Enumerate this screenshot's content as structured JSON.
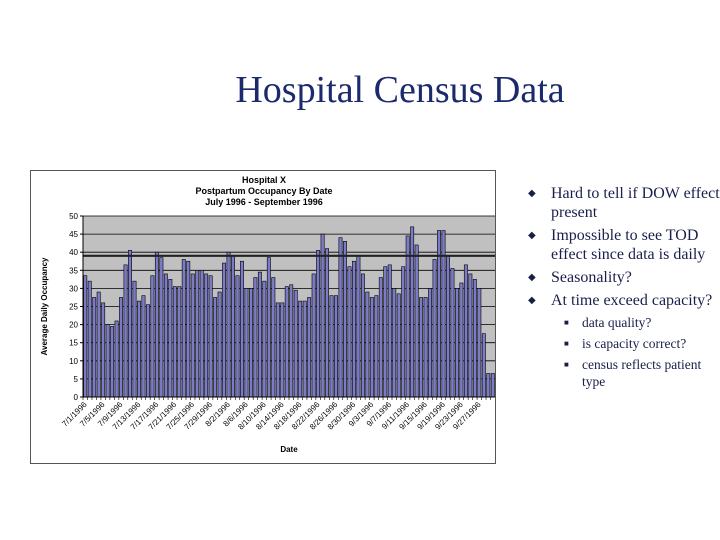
{
  "slide": {
    "title": "Hospital Census Data",
    "bullets": [
      {
        "text": "Hard to tell if DOW effect present"
      },
      {
        "text": "Impossible to see TOD effect since data is daily"
      },
      {
        "text": "Seasonality?"
      },
      {
        "text": "At time exceed capacity?",
        "sub": [
          "data quality?",
          "is capacity correct?",
          "census reflects patient type"
        ]
      }
    ],
    "icons": {
      "bullet": "diamond-bullet-icon",
      "sub_bullet": "square-bullet-icon"
    },
    "colors": {
      "title": "#1a2a6c",
      "text": "#1a1f4a"
    }
  },
  "chart_data": {
    "type": "bar",
    "title": [
      "Hospital X",
      "Postpartum Occupancy By Date",
      "July 1996 - September 1996"
    ],
    "xlabel": "Date",
    "ylabel": "Average Daily Occupancy",
    "ylim": [
      0,
      50
    ],
    "yticks": [
      0,
      5,
      10,
      15,
      20,
      25,
      30,
      35,
      40,
      45,
      50
    ],
    "grid": true,
    "legend": "none",
    "bar_color": "#7b7bc8",
    "plot_background": "#c0c0c0",
    "reference_line": {
      "value": 39,
      "meaning": "capacity"
    },
    "tick_labels": [
      "7/1/1996",
      "7/5/1996",
      "7/9/1996",
      "7/13/1996",
      "7/17/1996",
      "7/21/1996",
      "7/25/1996",
      "7/29/1996",
      "8/2/1996",
      "8/6/1996",
      "8/10/1996",
      "8/14/1996",
      "8/18/1996",
      "8/22/1996",
      "8/26/1996",
      "8/30/1996",
      "9/3/1996",
      "9/7/1996",
      "9/11/1996",
      "9/15/1996",
      "9/19/1996",
      "9/23/1996",
      "9/27/1996"
    ],
    "categories": [
      "7/1",
      "7/2",
      "7/3",
      "7/4",
      "7/5",
      "7/6",
      "7/7",
      "7/8",
      "7/9",
      "7/10",
      "7/11",
      "7/12",
      "7/13",
      "7/14",
      "7/15",
      "7/16",
      "7/17",
      "7/18",
      "7/19",
      "7/20",
      "7/21",
      "7/22",
      "7/23",
      "7/24",
      "7/25",
      "7/26",
      "7/27",
      "7/28",
      "7/29",
      "7/30",
      "7/31",
      "8/1",
      "8/2",
      "8/3",
      "8/4",
      "8/5",
      "8/6",
      "8/7",
      "8/8",
      "8/9",
      "8/10",
      "8/11",
      "8/12",
      "8/13",
      "8/14",
      "8/15",
      "8/16",
      "8/17",
      "8/18",
      "8/19",
      "8/20",
      "8/21",
      "8/22",
      "8/23",
      "8/24",
      "8/25",
      "8/26",
      "8/27",
      "8/28",
      "8/29",
      "8/30",
      "8/31",
      "9/1",
      "9/2",
      "9/3",
      "9/4",
      "9/5",
      "9/6",
      "9/7",
      "9/8",
      "9/9",
      "9/10",
      "9/11",
      "9/12",
      "9/13",
      "9/14",
      "9/15",
      "9/16",
      "9/17",
      "9/18",
      "9/19",
      "9/20",
      "9/21",
      "9/22",
      "9/23",
      "9/24",
      "9/25",
      "9/26",
      "9/27",
      "9/28",
      "9/29",
      "9/30"
    ],
    "values": [
      33.5,
      32,
      27.5,
      29,
      26,
      20,
      19.5,
      21,
      27.5,
      36.5,
      40.5,
      32,
      26.5,
      28,
      25.5,
      33.5,
      40,
      38.5,
      34,
      32.5,
      30.5,
      30.5,
      38,
      37.5,
      34,
      35,
      35,
      34,
      33.5,
      27.5,
      29,
      37,
      40,
      39,
      33.5,
      37.5,
      30,
      30,
      33,
      34.5,
      32,
      38.5,
      33,
      26,
      26,
      30.5,
      31,
      29.5,
      26.5,
      26.5,
      27.5,
      34,
      40.5,
      45,
      41,
      28,
      28,
      44,
      43,
      36,
      37.5,
      39,
      34,
      29,
      27.5,
      28,
      33,
      36,
      36.5,
      30,
      28.5,
      36,
      44.5,
      47,
      42,
      27.5,
      27.5,
      30,
      38,
      46,
      46,
      39,
      35.5,
      30,
      31.5,
      36.5,
      34,
      32.5,
      30,
      17.5,
      6.5,
      6.5
    ]
  }
}
